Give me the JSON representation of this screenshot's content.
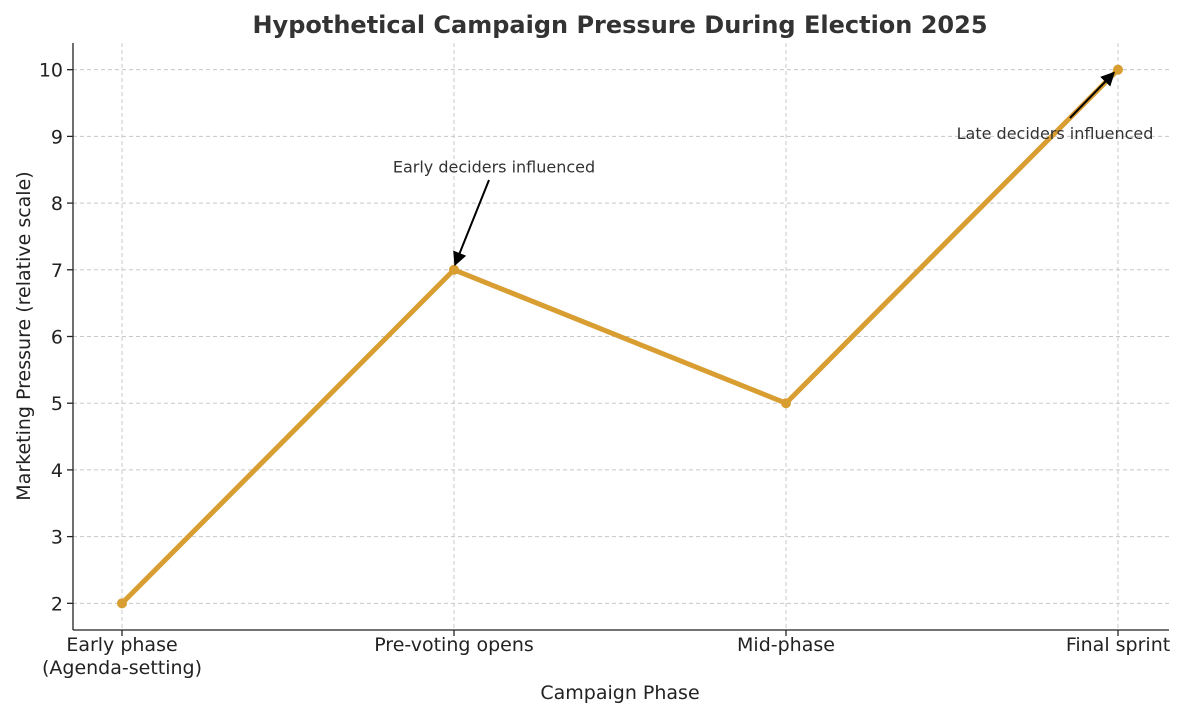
{
  "chart_data": {
    "type": "line",
    "title": "Hypothetical Campaign Pressure During Election 2025",
    "xlabel": "Campaign Phase",
    "ylabel": "Marketing Pressure (relative scale)",
    "categories": [
      [
        "Early phase",
        "(Agenda-setting)"
      ],
      [
        "Pre-voting opens"
      ],
      [
        "Mid-phase"
      ],
      [
        "Final sprint"
      ]
    ],
    "series": [
      {
        "name": "Marketing Pressure",
        "values": [
          2,
          7,
          5,
          10
        ],
        "color": "#d99e32"
      }
    ],
    "ylim": [
      1.6,
      10.4
    ],
    "yticks": [
      2,
      3,
      4,
      5,
      6,
      7,
      8,
      9,
      10
    ],
    "grid": true,
    "annotations": [
      {
        "text": "Early deciders influenced",
        "point_index": 1,
        "value": 7,
        "text_value": 8.55
      },
      {
        "text": "Late deciders influenced",
        "point_index": 3,
        "value": 10,
        "text_value": 9.05
      }
    ]
  }
}
